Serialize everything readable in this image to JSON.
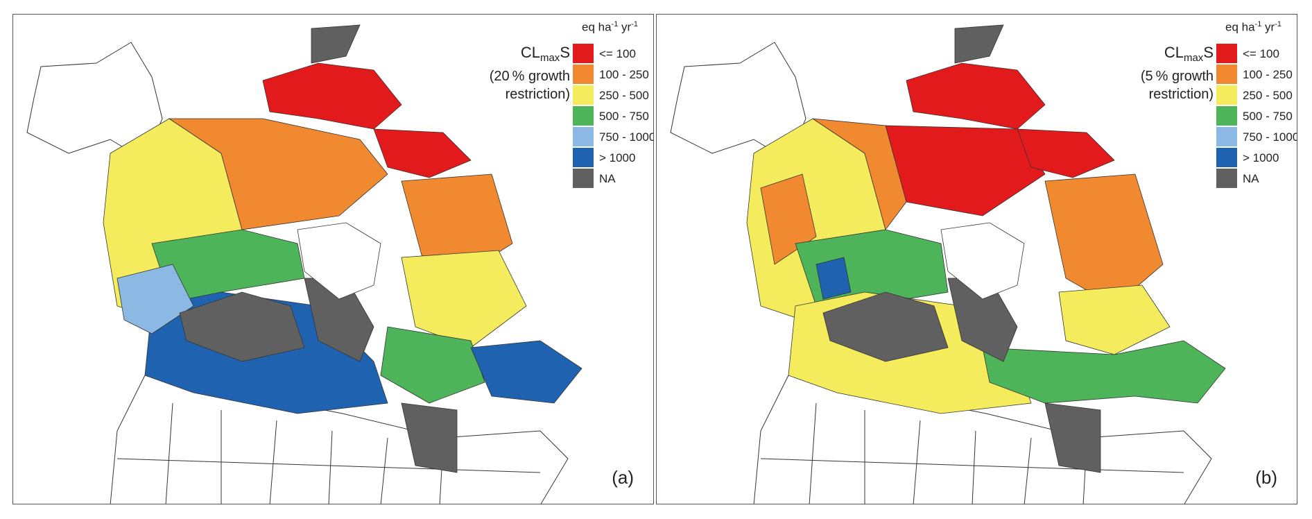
{
  "unit": {
    "prefix": "eq ha",
    "exp1": "-1",
    "mid": " yr",
    "exp2": "-1"
  },
  "variable": {
    "cl": "CL",
    "sub": "max",
    "suffix": "S"
  },
  "legend_classes": [
    {
      "label": "<= 100",
      "color": "#e31a1c"
    },
    {
      "label": "100 - 250",
      "color": "#f0892f"
    },
    {
      "label": "250 - 500",
      "color": "#f4ec5c"
    },
    {
      "label": "500 - 750",
      "color": "#4db45a"
    },
    {
      "label": "750 - 1000",
      "color": "#8cb8e4"
    },
    {
      "label": "> 1000",
      "color": "#1f63b0"
    },
    {
      "label": "NA",
      "color": "#606060"
    }
  ],
  "panels": [
    {
      "id": "a",
      "label": "(a)",
      "restriction_line1": "(20 % growth",
      "restriction_line2": "restriction)"
    },
    {
      "id": "b",
      "label": "(b)",
      "restriction_line1": "(5 % growth",
      "restriction_line2": "restriction)"
    }
  ],
  "map_colors": {
    "outline": "#333333",
    "background": "#ffffff",
    "na": "#606060"
  }
}
